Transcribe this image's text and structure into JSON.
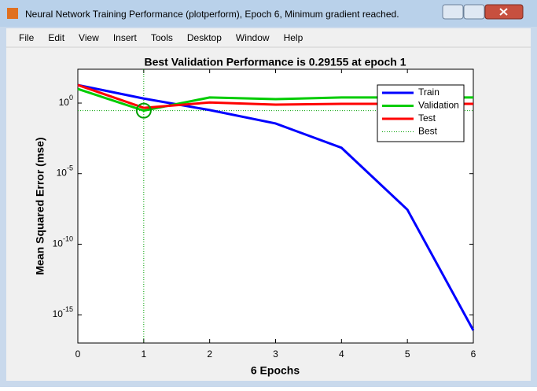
{
  "window": {
    "title": "Neural Network Training Performance (plotperform), Epoch 6, Minimum gradient reached.",
    "menu": [
      "File",
      "Edit",
      "View",
      "Insert",
      "Tools",
      "Desktop",
      "Window",
      "Help"
    ]
  },
  "chart_data": {
    "type": "line",
    "title": "Best Validation Performance is 0.29155 at epoch 1",
    "x_label": "6 Epochs",
    "y_label": "Mean Squared Error  (mse)",
    "x": [
      0,
      1,
      2,
      3,
      4,
      5,
      6
    ],
    "xlim": [
      0,
      6
    ],
    "xticks": [
      0,
      1,
      2,
      3,
      4,
      5,
      6
    ],
    "ylim": [
      1e-17,
      250
    ],
    "yscale": "log",
    "yticks": [
      {
        "value": 1e-15,
        "label": "10^-15"
      },
      {
        "value": 1e-10,
        "label": "10^-10"
      },
      {
        "value": 1e-05,
        "label": "10^-5"
      },
      {
        "value": 1,
        "label": "10^0"
      }
    ],
    "series": [
      {
        "name": "Train",
        "color": "#0000ff",
        "values": [
          19,
          2.1,
          0.32,
          0.036,
          0.00068,
          2.8e-08,
          7.9e-17
        ]
      },
      {
        "name": "Validation",
        "color": "#00cc00",
        "values": [
          10,
          0.29155,
          2.5,
          1.9,
          2.5,
          2.5,
          2.5
        ]
      },
      {
        "name": "Test",
        "color": "#ff0000",
        "values": [
          19,
          0.46,
          1.1,
          0.77,
          0.88,
          0.88,
          0.88
        ]
      }
    ],
    "best": {
      "name": "Best",
      "epoch": 1,
      "value": 0.29155,
      "color": "#00a000"
    },
    "legend": "upper right"
  }
}
